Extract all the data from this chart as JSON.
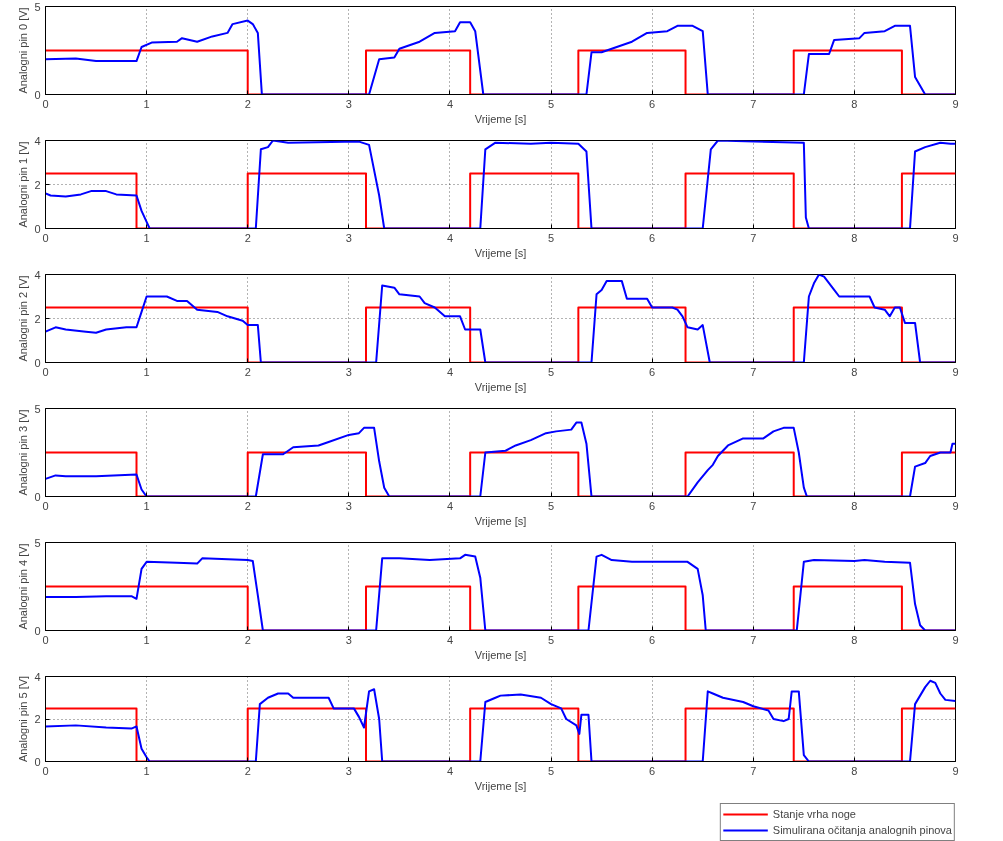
{
  "chart_data": [
    {
      "type": "line",
      "ylabel": "Analogni pin 0 [V]",
      "xlabel": "Vrijeme [s]",
      "xlim": [
        0,
        9
      ],
      "xticks": [
        0,
        1,
        2,
        3,
        4,
        5,
        6,
        7,
        8,
        9
      ],
      "ylim": [
        0,
        5
      ],
      "yticks": [
        0,
        5
      ],
      "grid": true,
      "series": [
        {
          "type": "step",
          "color": "#ff0000",
          "x": [
            0,
            2,
            3.17,
            4.2,
            5.27,
            6.33,
            7.4,
            8.47,
            9
          ],
          "values": [
            2.5,
            0,
            2.5,
            0,
            2.5,
            0,
            2.5,
            0,
            0
          ]
        },
        {
          "color": "#0000ff",
          "x": [
            0,
            0.3,
            0.5,
            0.9,
            0.95,
            1.05,
            1.3,
            1.35,
            1.5,
            1.65,
            1.8,
            1.85,
            2.0,
            2.05,
            2.1,
            2.14,
            3.2,
            3.3,
            3.45,
            3.5,
            3.7,
            3.85,
            4.05,
            4.1,
            4.2,
            4.25,
            4.33,
            5.35,
            5.4,
            5.5,
            5.6,
            5.8,
            5.95,
            6.15,
            6.25,
            6.4,
            6.5,
            6.55,
            7.5,
            7.55,
            7.75,
            7.8,
            8.05,
            8.1,
            8.3,
            8.4,
            8.55,
            8.6,
            8.65,
            8.7,
            9
          ],
          "values": [
            2.0,
            2.05,
            1.9,
            1.9,
            2.7,
            2.95,
            3.0,
            3.2,
            3.0,
            3.3,
            3.5,
            4.0,
            4.2,
            4.0,
            3.5,
            0,
            0,
            2.0,
            2.1,
            2.6,
            3.0,
            3.5,
            3.6,
            4.1,
            4.1,
            3.6,
            0,
            0,
            2.4,
            2.4,
            2.6,
            3.0,
            3.5,
            3.6,
            3.9,
            3.9,
            3.6,
            0,
            0,
            2.3,
            2.3,
            3.1,
            3.2,
            3.5,
            3.6,
            3.9,
            3.9,
            1.0,
            0.5,
            0,
            0
          ]
        }
      ]
    },
    {
      "type": "line",
      "ylabel": "Analogni pin 1 [V]",
      "xlabel": "Vrijeme [s]",
      "xlim": [
        0,
        9
      ],
      "xticks": [
        0,
        1,
        2,
        3,
        4,
        5,
        6,
        7,
        8,
        9
      ],
      "ylim": [
        0,
        4
      ],
      "yticks": [
        0,
        2,
        4
      ],
      "grid": true,
      "series": [
        {
          "type": "step",
          "color": "#ff0000",
          "x": [
            0,
            0.9,
            2,
            3.17,
            4.2,
            5.27,
            6.33,
            7.4,
            8.47,
            9
          ],
          "values": [
            2.5,
            0,
            2.5,
            0,
            2.5,
            0,
            2.5,
            0,
            2.5,
            2.5
          ]
        },
        {
          "color": "#0000ff",
          "x": [
            0,
            0.05,
            0.2,
            0.35,
            0.45,
            0.6,
            0.7,
            0.9,
            0.95,
            1.0,
            1.03,
            2.08,
            2.13,
            2.2,
            2.25,
            2.4,
            3.1,
            3.2,
            3.3,
            3.35,
            4.3,
            4.35,
            4.45,
            4.8,
            5.0,
            5.27,
            5.35,
            5.4,
            6.5,
            6.58,
            6.65,
            7.5,
            7.52,
            7.55,
            8.55,
            8.6,
            8.7,
            8.85,
            8.95,
            9
          ],
          "values": [
            1.6,
            1.5,
            1.45,
            1.55,
            1.7,
            1.7,
            1.55,
            1.5,
            0.8,
            0.3,
            0,
            0,
            3.6,
            3.7,
            4.0,
            3.9,
            3.95,
            3.8,
            1.5,
            0,
            0,
            3.6,
            3.9,
            3.85,
            3.9,
            3.85,
            3.5,
            0,
            0,
            3.6,
            4.0,
            3.9,
            0.5,
            0,
            0,
            3.5,
            3.7,
            3.9,
            3.85,
            3.85
          ]
        }
      ]
    },
    {
      "type": "line",
      "ylabel": "Analogni pin 2 [V]",
      "xlabel": "Vrijeme [s]",
      "xlim": [
        0,
        9
      ],
      "xticks": [
        0,
        1,
        2,
        3,
        4,
        5,
        6,
        7,
        8,
        9
      ],
      "ylim": [
        0,
        4
      ],
      "yticks": [
        0,
        2,
        4
      ],
      "grid": true,
      "series": [
        {
          "type": "step",
          "color": "#ff0000",
          "x": [
            0,
            2,
            3.17,
            4.2,
            5.27,
            6.33,
            7.4,
            8.47,
            9
          ],
          "values": [
            2.5,
            0,
            2.5,
            0,
            2.5,
            0,
            2.5,
            0,
            0
          ]
        },
        {
          "color": "#0000ff",
          "x": [
            0,
            0.1,
            0.2,
            0.4,
            0.5,
            0.6,
            0.8,
            0.9,
            0.95,
            1.0,
            1.2,
            1.3,
            1.4,
            1.5,
            1.7,
            1.8,
            1.95,
            2.0,
            2.1,
            2.13,
            3.27,
            3.33,
            3.45,
            3.5,
            3.7,
            3.75,
            3.85,
            3.95,
            4.1,
            4.15,
            4.3,
            4.35,
            5.4,
            5.45,
            5.5,
            5.55,
            5.7,
            5.75,
            5.95,
            6.0,
            6.2,
            6.25,
            6.3,
            6.35,
            6.45,
            6.5,
            6.57,
            7.5,
            7.55,
            7.6,
            7.65,
            7.7,
            7.8,
            7.85,
            8.15,
            8.2,
            8.3,
            8.35,
            8.4,
            8.45,
            8.5,
            8.6,
            8.65,
            9
          ],
          "values": [
            1.4,
            1.6,
            1.5,
            1.4,
            1.35,
            1.5,
            1.6,
            1.6,
            2.3,
            3.0,
            3.0,
            2.8,
            2.8,
            2.4,
            2.3,
            2.1,
            1.9,
            1.7,
            1.7,
            0,
            0,
            3.5,
            3.4,
            3.1,
            3.0,
            2.7,
            2.5,
            2.1,
            2.1,
            1.5,
            1.5,
            0,
            0,
            3.1,
            3.3,
            3.7,
            3.7,
            2.9,
            2.9,
            2.5,
            2.5,
            2.4,
            2.1,
            1.6,
            1.5,
            1.7,
            0,
            0,
            3.0,
            3.6,
            4.0,
            3.9,
            3.3,
            3.0,
            3.0,
            2.5,
            2.4,
            2.1,
            2.5,
            2.5,
            1.8,
            1.8,
            0,
            0
          ]
        }
      ]
    },
    {
      "type": "line",
      "ylabel": "Analogni pin 3 [V]",
      "xlabel": "Vrijeme [s]",
      "xlim": [
        0,
        9
      ],
      "xticks": [
        0,
        1,
        2,
        3,
        4,
        5,
        6,
        7,
        8,
        9
      ],
      "ylim": [
        0,
        5
      ],
      "yticks": [
        0,
        5
      ],
      "grid": true,
      "series": [
        {
          "type": "step",
          "color": "#ff0000",
          "x": [
            0,
            0.9,
            2,
            3.17,
            4.2,
            5.27,
            6.33,
            7.4,
            8.47,
            9
          ],
          "values": [
            2.5,
            0,
            2.5,
            0,
            2.5,
            0,
            2.5,
            0,
            2.5,
            2.5
          ]
        },
        {
          "color": "#0000ff",
          "x": [
            0,
            0.1,
            0.2,
            0.5,
            0.9,
            0.95,
            1.0,
            2.08,
            2.15,
            2.35,
            2.45,
            2.7,
            2.8,
            3.0,
            3.1,
            3.15,
            3.25,
            3.3,
            3.35,
            3.4,
            4.3,
            4.35,
            4.55,
            4.65,
            4.8,
            4.95,
            5.05,
            5.2,
            5.25,
            5.3,
            5.35,
            5.4,
            6.35,
            6.45,
            6.55,
            6.6,
            6.65,
            6.75,
            6.9,
            7.1,
            7.2,
            7.3,
            7.4,
            7.45,
            7.5,
            7.53,
            8.55,
            8.6,
            8.7,
            8.75,
            8.85,
            8.95,
            8.97,
            9
          ],
          "values": [
            1.0,
            1.2,
            1.15,
            1.15,
            1.25,
            0.4,
            0,
            0,
            2.4,
            2.4,
            2.8,
            2.9,
            3.1,
            3.5,
            3.6,
            3.9,
            3.9,
            2.0,
            0.5,
            0,
            0,
            2.5,
            2.6,
            2.9,
            3.2,
            3.6,
            3.7,
            3.8,
            4.2,
            4.2,
            3.0,
            0,
            0,
            0.8,
            1.5,
            1.8,
            2.3,
            2.9,
            3.3,
            3.3,
            3.7,
            3.9,
            3.9,
            2.5,
            0.5,
            0,
            0,
            1.7,
            1.9,
            2.3,
            2.5,
            2.5,
            3.0,
            3.0
          ]
        }
      ]
    },
    {
      "type": "line",
      "ylabel": "Analogni pin 4 [V]",
      "xlabel": "Vrijeme [s]",
      "xlim": [
        0,
        9
      ],
      "xticks": [
        0,
        1,
        2,
        3,
        4,
        5,
        6,
        7,
        8,
        9
      ],
      "ylim": [
        0,
        5
      ],
      "yticks": [
        0,
        5
      ],
      "grid": true,
      "series": [
        {
          "type": "step",
          "color": "#ff0000",
          "x": [
            0,
            2,
            3.17,
            4.2,
            5.27,
            6.33,
            7.4,
            8.47,
            9
          ],
          "values": [
            2.5,
            0,
            2.5,
            0,
            2.5,
            0,
            2.5,
            0,
            0
          ]
        },
        {
          "color": "#0000ff",
          "x": [
            0,
            0.3,
            0.6,
            0.85,
            0.9,
            0.95,
            1.0,
            1.3,
            1.5,
            1.55,
            2.0,
            2.05,
            2.1,
            2.15,
            3.27,
            3.33,
            3.5,
            3.8,
            4.1,
            4.15,
            4.25,
            4.3,
            4.35,
            5.37,
            5.45,
            5.5,
            5.6,
            5.8,
            6.35,
            6.45,
            6.5,
            6.53,
            7.43,
            7.5,
            7.6,
            8.0,
            8.1,
            8.3,
            8.55,
            8.6,
            8.65,
            8.7,
            9
          ],
          "values": [
            1.9,
            1.9,
            1.95,
            1.95,
            1.8,
            3.5,
            3.9,
            3.85,
            3.8,
            4.1,
            4.0,
            3.95,
            2.0,
            0,
            0,
            4.1,
            4.1,
            4.0,
            4.1,
            4.3,
            4.2,
            3.0,
            0,
            0,
            4.2,
            4.3,
            4.0,
            3.9,
            3.9,
            3.5,
            2.0,
            0,
            0,
            3.9,
            4.0,
            3.95,
            4.0,
            3.9,
            3.85,
            1.5,
            0.3,
            0,
            0
          ]
        }
      ]
    },
    {
      "type": "line",
      "ylabel": "Analogni pin 5 [V]",
      "xlabel": "Vrijeme [s]",
      "xlim": [
        0,
        9
      ],
      "xticks": [
        0,
        1,
        2,
        3,
        4,
        5,
        6,
        7,
        8,
        9
      ],
      "ylim": [
        0,
        4
      ],
      "yticks": [
        0,
        2,
        4
      ],
      "grid": true,
      "legend": "bottom right",
      "series": [
        {
          "type": "step",
          "name": "Stanje vrha noge",
          "color": "#ff0000",
          "x": [
            0,
            0.9,
            2,
            3.17,
            4.2,
            5.27,
            6.33,
            7.4,
            8.47,
            9
          ],
          "values": [
            2.5,
            0,
            2.5,
            0,
            2.5,
            0,
            2.5,
            0,
            2.5,
            2.5
          ]
        },
        {
          "name": "Simulirana očitanja analognih pinova",
          "color": "#0000ff",
          "x": [
            0,
            0.3,
            0.6,
            0.85,
            0.9,
            0.95,
            1.0,
            1.03,
            2.08,
            2.12,
            2.2,
            2.3,
            2.4,
            2.45,
            2.8,
            2.85,
            3.05,
            3.1,
            3.15,
            3.2,
            3.25,
            3.3,
            3.33,
            4.3,
            4.35,
            4.45,
            4.5,
            4.7,
            4.9,
            5.0,
            5.1,
            5.15,
            5.25,
            5.28,
            5.3,
            5.37,
            5.4,
            6.5,
            6.55,
            6.6,
            6.7,
            6.9,
            7.0,
            7.15,
            7.2,
            7.3,
            7.35,
            7.38,
            7.45,
            7.5,
            7.55,
            8.55,
            8.6,
            8.7,
            8.75,
            8.8,
            8.85,
            8.9,
            9
          ],
          "values": [
            1.65,
            1.7,
            1.6,
            1.55,
            1.65,
            0.6,
            0.2,
            0,
            0,
            2.7,
            3.0,
            3.2,
            3.2,
            3.0,
            3.0,
            2.5,
            2.5,
            2.1,
            1.6,
            3.3,
            3.4,
            2.0,
            0,
            0,
            2.8,
            3.0,
            3.1,
            3.15,
            3.0,
            2.7,
            2.5,
            2.0,
            1.7,
            1.3,
            2.2,
            2.2,
            0,
            0,
            3.3,
            3.2,
            3.0,
            2.8,
            2.6,
            2.4,
            2.0,
            1.9,
            2.0,
            3.3,
            3.3,
            0.3,
            0,
            0,
            2.7,
            3.5,
            3.8,
            3.7,
            3.2,
            2.9,
            2.85
          ]
        }
      ]
    }
  ]
}
